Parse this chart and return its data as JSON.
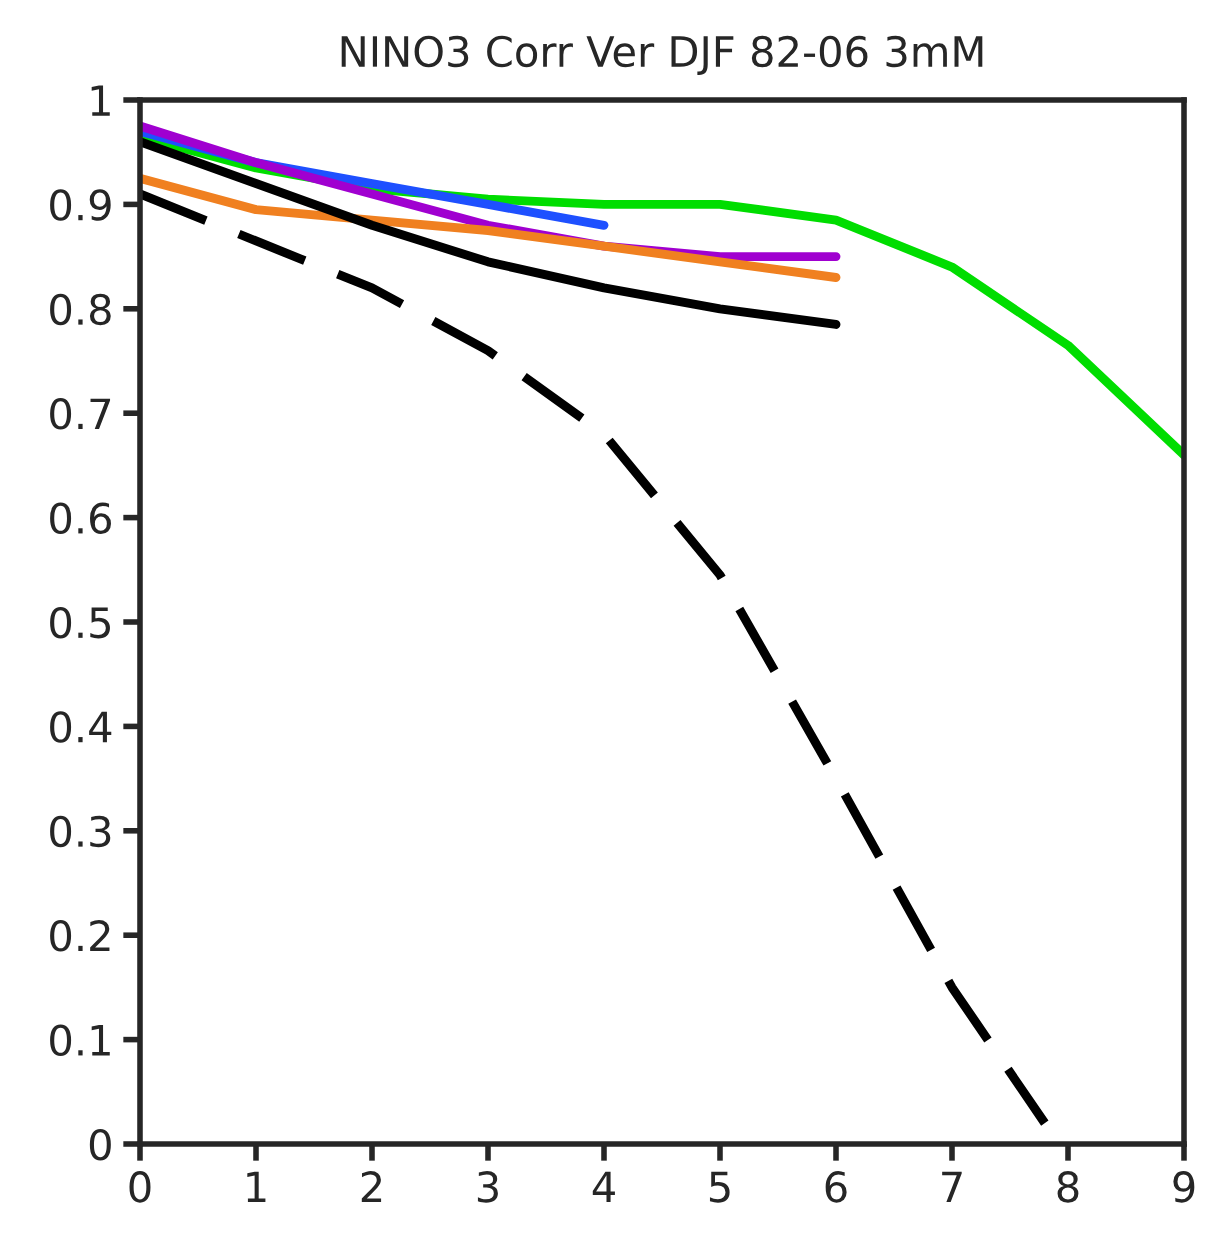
{
  "chart_data": {
    "type": "line",
    "title": "NINO3 Corr Ver DJF 82-06 3mM",
    "xlim": [
      0,
      9
    ],
    "xticks": [
      0,
      1,
      2,
      3,
      4,
      5,
      6,
      7,
      8,
      9
    ],
    "ylim": [
      0,
      1
    ],
    "yticks": [
      0,
      0.1,
      0.2,
      0.3,
      0.4,
      0.5,
      0.6,
      0.7,
      0.8,
      0.9,
      1
    ],
    "grid": false,
    "marker": "none",
    "series": [
      {
        "color": "#00dd00",
        "x": [
          0,
          1,
          2,
          3,
          4,
          5,
          6,
          7,
          8,
          9
        ],
        "values": [
          0.965,
          0.935,
          0.915,
          0.905,
          0.9,
          0.9,
          0.885,
          0.84,
          0.765,
          0.66
        ],
        "line_style": "solid"
      },
      {
        "color": "#1e50ff",
        "x": [
          0,
          1,
          2,
          3,
          4
        ],
        "values": [
          0.97,
          0.94,
          0.92,
          0.9,
          0.88
        ],
        "line_style": "solid"
      },
      {
        "color": "#a000d0",
        "x": [
          0,
          1,
          2,
          3,
          4,
          5,
          6
        ],
        "values": [
          0.975,
          0.94,
          0.91,
          0.88,
          0.86,
          0.85,
          0.85
        ],
        "line_style": "solid"
      },
      {
        "color": "#f08020",
        "x": [
          0,
          1,
          2,
          3,
          4,
          5,
          6
        ],
        "values": [
          0.925,
          0.895,
          0.885,
          0.875,
          0.86,
          0.845,
          0.83
        ],
        "line_style": "solid"
      },
      {
        "color": "#000000",
        "x": [
          0,
          1,
          2,
          3,
          4,
          5,
          6
        ],
        "values": [
          0.96,
          0.92,
          0.88,
          0.845,
          0.82,
          0.8,
          0.785
        ],
        "line_style": "solid"
      },
      {
        "color": "#000000",
        "x": [
          0,
          1,
          2,
          3,
          4,
          5,
          6,
          7,
          7.8
        ],
        "values": [
          0.91,
          0.865,
          0.82,
          0.76,
          0.68,
          0.545,
          0.35,
          0.15,
          0.02
        ],
        "line_style": "dashed"
      }
    ]
  }
}
